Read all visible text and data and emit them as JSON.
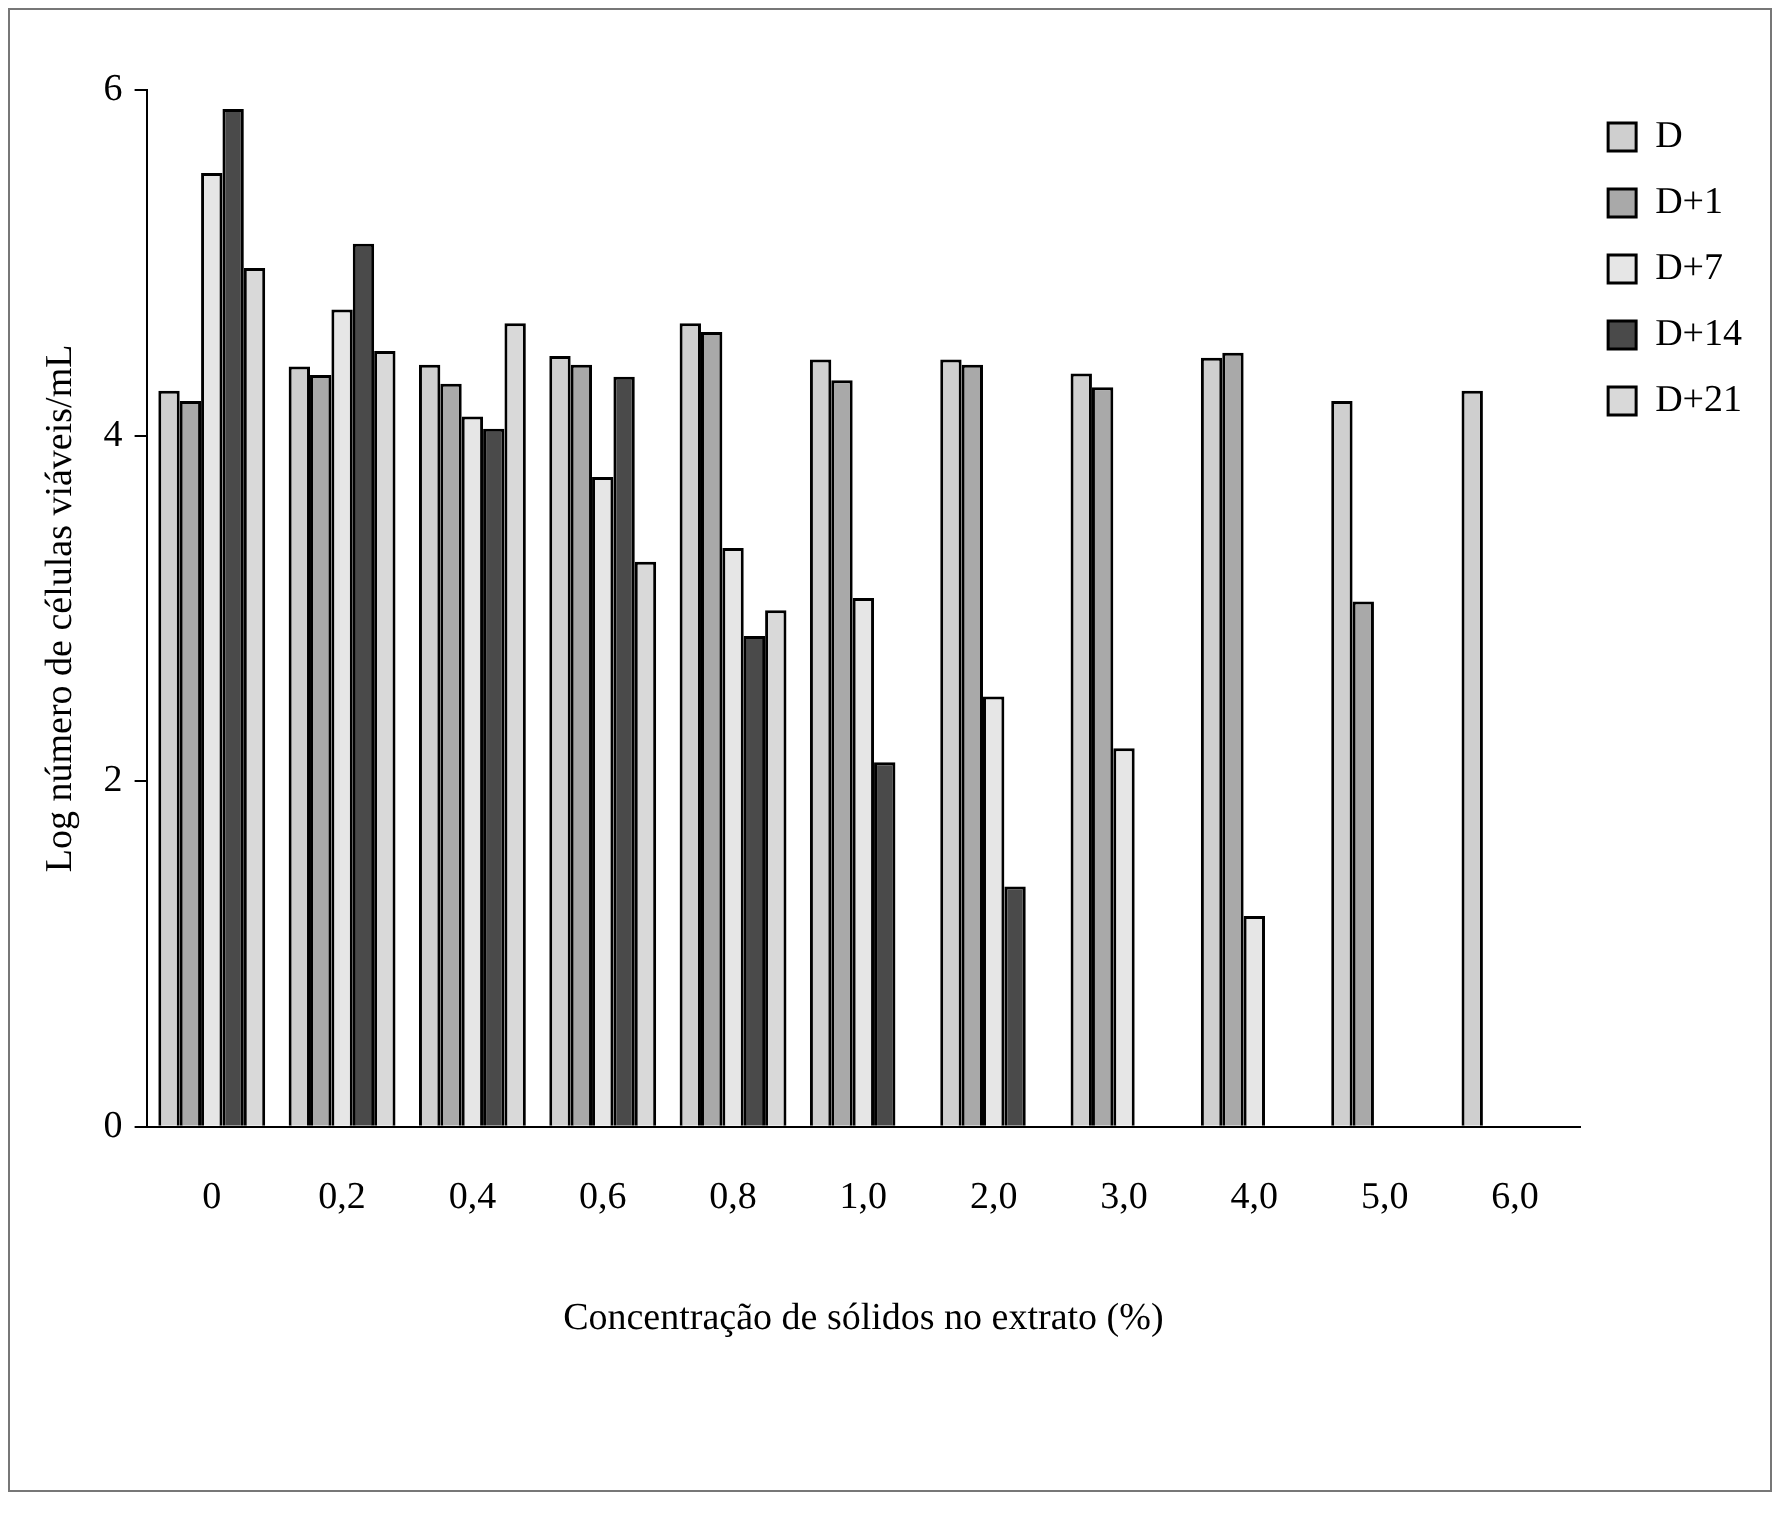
{
  "chart_data": {
    "type": "bar",
    "xlabel": "Concentração de sólidos no extrato (%)",
    "ylabel": "Log número de células viáveis/mL",
    "categories": [
      "0",
      "0,2",
      "0,4",
      "0,6",
      "0,8",
      "1,0",
      "2,0",
      "3,0",
      "4,0",
      "5,0",
      "6,0"
    ],
    "series": [
      {
        "name": "D",
        "color": "#cfcfcf",
        "values": [
          4.26,
          4.4,
          4.41,
          4.46,
          4.65,
          4.44,
          4.44,
          4.36,
          4.45,
          4.2,
          4.26
        ]
      },
      {
        "name": "D+1",
        "color": "#a9a9a9",
        "values": [
          4.2,
          4.35,
          4.3,
          4.41,
          4.6,
          4.32,
          4.41,
          4.28,
          4.48,
          3.04,
          null
        ]
      },
      {
        "name": "D+7",
        "color": "#e6e6e6",
        "values": [
          5.52,
          4.73,
          4.11,
          3.76,
          3.35,
          3.06,
          2.49,
          2.19,
          1.22,
          null,
          null
        ]
      },
      {
        "name": "D+14",
        "color": "#4a4a4a",
        "values": [
          5.89,
          5.11,
          4.04,
          4.34,
          2.84,
          2.11,
          1.39,
          null,
          null,
          null,
          null
        ]
      },
      {
        "name": "D+21",
        "color": "#d9d9d9",
        "values": [
          4.97,
          4.49,
          4.65,
          3.27,
          2.99,
          null,
          null,
          null,
          null,
          null,
          null
        ]
      }
    ],
    "ylim": [
      0,
      6
    ],
    "yticks": [
      0,
      2,
      4,
      6
    ],
    "grid": false,
    "legend": "top right"
  }
}
